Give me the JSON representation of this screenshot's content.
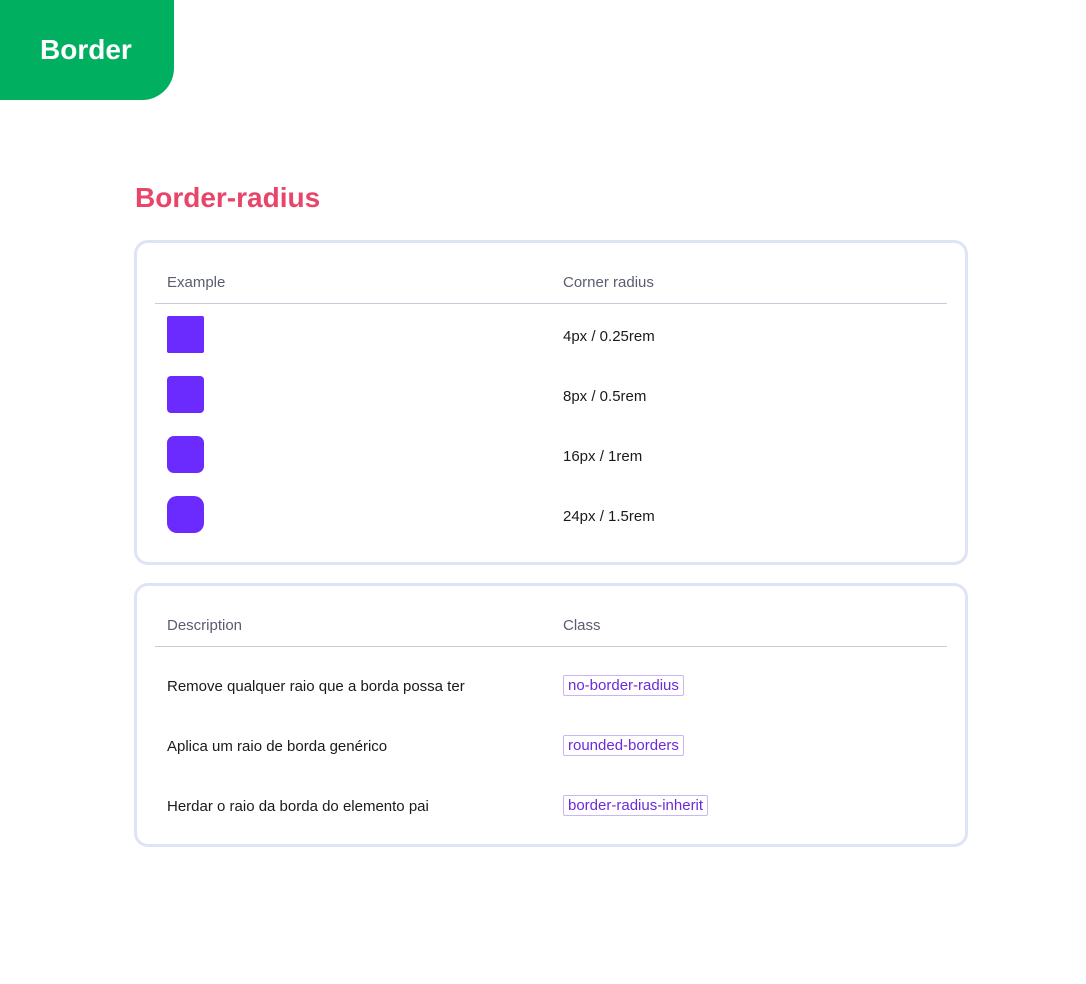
{
  "badge": "Border",
  "title": "Border-radius",
  "examples": {
    "headers": [
      "Example",
      "Corner radius"
    ],
    "color": "#6b2bff",
    "rows": [
      {
        "value": "4px / 0.25rem"
      },
      {
        "value": "8px / 0.5rem"
      },
      {
        "value": "16px / 1rem"
      },
      {
        "value": "24px / 1.5rem"
      }
    ]
  },
  "classes": {
    "headers": [
      "Description",
      "Class"
    ],
    "rows": [
      {
        "description": "Remove qualquer raio que a borda possa ter",
        "class": "no-border-radius"
      },
      {
        "description": "Aplica um raio de borda genérico",
        "class": "rounded-borders"
      },
      {
        "description": "Herdar o raio da borda do elemento pai",
        "class": "border-radius-inherit"
      }
    ]
  }
}
